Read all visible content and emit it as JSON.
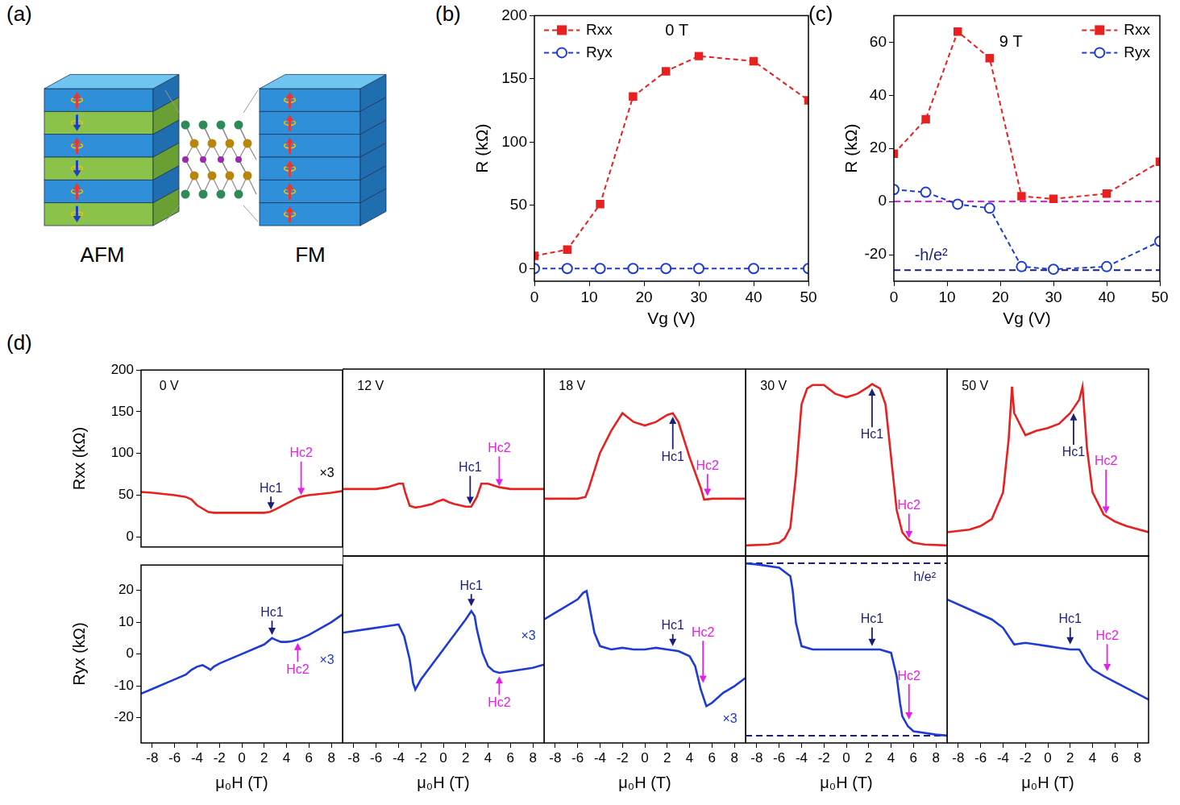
{
  "diagram": {
    "panel": "(a)",
    "labels": [
      "AFM",
      "FM"
    ]
  },
  "chart_data": [
    {
      "type": "line",
      "panel": "(b)",
      "xlabel": "Vg (V)",
      "ylabel": "R (kΩ)",
      "x": [
        0,
        6,
        12,
        18,
        24,
        30,
        40,
        50
      ],
      "series": [
        {
          "name": "Rxx",
          "color": "#e8201f",
          "marker": "square",
          "line_style": "dashed",
          "values": [
            10,
            15,
            51,
            136,
            156,
            168,
            164,
            133
          ]
        },
        {
          "name": "Ryx",
          "color": "#1f3bd6",
          "marker": "open_circle",
          "line_style": "dashed",
          "values": [
            0,
            0,
            0,
            0,
            0,
            0,
            0,
            0
          ]
        }
      ],
      "xlim": [
        0,
        50
      ],
      "xticks": [
        0,
        10,
        20,
        30,
        40,
        50
      ],
      "ylim": [
        -10,
        200
      ],
      "yticks": [
        0,
        50,
        100,
        150,
        200
      ],
      "grid": false,
      "legend": "upper left",
      "annotations": [
        {
          "text": "0 T",
          "x": 26,
          "y": 188,
          "color": "#000000"
        }
      ]
    },
    {
      "type": "line",
      "panel": "(c)",
      "xlabel": "Vg (V)",
      "ylabel": "R (kΩ)",
      "x": [
        0,
        6,
        12,
        18,
        24,
        30,
        40,
        50
      ],
      "series": [
        {
          "name": "Rxx",
          "color": "#e8201f",
          "marker": "square",
          "line_style": "dashed",
          "values": [
            18,
            31,
            64,
            54,
            2,
            1,
            3,
            15
          ]
        },
        {
          "name": "Ryx",
          "color": "#1f3bd6",
          "marker": "open_circle",
          "line_style": "dashed",
          "values": [
            4.5,
            3.5,
            -1,
            -2.5,
            -24.5,
            -25.5,
            -24.5,
            -15
          ]
        }
      ],
      "xlim": [
        0,
        50
      ],
      "xticks": [
        0,
        10,
        20,
        30,
        40,
        50
      ],
      "ylim": [
        -30,
        70
      ],
      "yticks": [
        -20,
        0,
        20,
        40,
        60
      ],
      "grid": false,
      "legend": "upper right",
      "hlines": [
        {
          "y": 0,
          "color": "#e61ee6",
          "line_style": "dashed"
        },
        {
          "y": -25.8,
          "color": "#1b1f7a",
          "line_style": "dashed"
        }
      ],
      "annotations": [
        {
          "text": "9 T",
          "x": 22,
          "y": 60,
          "color": "#000000"
        },
        {
          "text": "-h/e²",
          "x": 7,
          "y": -20.5,
          "color": "#1b1f7a"
        }
      ]
    },
    {
      "type": "line",
      "panel": "(d)",
      "ylabel": "Rxx (kΩ)",
      "tick_labels": "y",
      "x": [
        -9,
        -8,
        -6,
        -5,
        -4.5,
        -4,
        -3,
        -2.5,
        -2,
        0,
        2,
        2.5,
        3,
        4,
        5,
        5.5,
        6,
        8,
        9
      ],
      "series": [
        {
          "color": "#e8201f",
          "marker": "none",
          "line_style": "solid",
          "values": [
            54,
            53,
            50,
            48,
            45,
            38,
            30,
            29,
            29,
            29,
            29,
            30,
            33,
            40,
            47,
            49,
            50,
            53,
            55
          ]
        }
      ],
      "xlim": [
        -9,
        9
      ],
      "xticks": [
        -8,
        -6,
        -4,
        -2,
        0,
        2,
        4,
        6,
        8
      ],
      "ylim": [
        -12,
        200
      ],
      "yticks": [
        0,
        50,
        100,
        150,
        200
      ],
      "grid": false,
      "annotations": [
        {
          "text": "0 V",
          "x": -6.5,
          "y": 180,
          "color": "#000000"
        },
        {
          "text": "Hc1",
          "x": 2.6,
          "y": 58,
          "arrow_to": 33,
          "color": "#1b1f7a"
        },
        {
          "text": "Hc2",
          "x": 5.3,
          "y": 100,
          "arrow_to": 50,
          "color": "#e61ee6"
        },
        {
          "text": "×3",
          "x": 7.6,
          "y": 76,
          "color": "#000000"
        }
      ]
    },
    {
      "type": "line",
      "tick_labels": false,
      "x": [
        -9,
        -6,
        -5,
        -4.5,
        -4,
        -3.6,
        -3.4,
        -3,
        -2.5,
        -2,
        -1,
        -0.5,
        0,
        0.5,
        1,
        2,
        2.5,
        3,
        3.4,
        4,
        4.5,
        5,
        6,
        9
      ],
      "series": [
        {
          "color": "#e8201f",
          "marker": "none",
          "line_style": "solid",
          "values": [
            64,
            64,
            66,
            68,
            70,
            70,
            60,
            45,
            43,
            44,
            47,
            50,
            52,
            49,
            47,
            44,
            44,
            55,
            70,
            70,
            68,
            66,
            64,
            64
          ]
        }
      ],
      "xlim": [
        -9,
        9
      ],
      "xticks": [
        -8,
        -6,
        -4,
        -2,
        0,
        2,
        4,
        6,
        8
      ],
      "ylim": [
        -12,
        200
      ],
      "yticks": [
        0,
        50,
        100,
        150,
        200
      ],
      "grid": false,
      "annotations": [
        {
          "text": "12 V",
          "x": -6.5,
          "y": 180,
          "color": "#000000"
        },
        {
          "text": "Hc1",
          "x": 2.4,
          "y": 88,
          "arrow_to": 47,
          "color": "#1b1f7a"
        },
        {
          "text": "Hc2",
          "x": 5,
          "y": 110,
          "arrow_to": 67,
          "color": "#e61ee6"
        }
      ]
    },
    {
      "type": "line",
      "tick_labels": false,
      "x": [
        -9,
        -6,
        -5.3,
        -5,
        -4.5,
        -4,
        -3,
        -2,
        -1,
        0,
        1,
        2,
        2.5,
        3,
        4,
        5,
        5.3,
        6,
        9
      ],
      "series": [
        {
          "color": "#e8201f",
          "marker": "none",
          "line_style": "solid",
          "values": [
            53,
            53,
            55,
            65,
            85,
            105,
            130,
            150,
            140,
            136,
            140,
            148,
            150,
            140,
            100,
            65,
            52,
            53,
            53
          ]
        }
      ],
      "xlim": [
        -9,
        9
      ],
      "xticks": [
        -8,
        -6,
        -4,
        -2,
        0,
        2,
        4,
        6,
        8
      ],
      "ylim": [
        -12,
        200
      ],
      "yticks": [
        0,
        50,
        100,
        150,
        200
      ],
      "grid": false,
      "annotations": [
        {
          "text": "18 V",
          "x": -6.5,
          "y": 180,
          "color": "#000000"
        },
        {
          "text": "Hc1",
          "x": 2.5,
          "y": 100,
          "arrow_to": 146,
          "color": "#1b1f7a"
        },
        {
          "text": "Hc2",
          "x": 5.6,
          "y": 90,
          "arrow_to": 56,
          "color": "#e61ee6"
        }
      ]
    },
    {
      "type": "line",
      "tick_labels": false,
      "x": [
        -9,
        -7,
        -6,
        -5.5,
        -5,
        -4.5,
        -4,
        -3.5,
        -3,
        -2,
        -1,
        0,
        1,
        2,
        2.3,
        3,
        3.5,
        4,
        4.5,
        5,
        5.5,
        6,
        7,
        9
      ],
      "series": [
        {
          "color": "#e8201f",
          "marker": "none",
          "line_style": "solid",
          "values": [
            0,
            1,
            3,
            8,
            20,
            80,
            160,
            178,
            182,
            182,
            172,
            168,
            172,
            180,
            183,
            178,
            160,
            100,
            40,
            15,
            7,
            3,
            1,
            0
          ]
        }
      ],
      "xlim": [
        -9,
        9
      ],
      "xticks": [
        -8,
        -6,
        -4,
        -2,
        0,
        2,
        4,
        6,
        8
      ],
      "ylim": [
        -12,
        200
      ],
      "yticks": [
        0,
        50,
        100,
        150,
        200
      ],
      "grid": false,
      "annotations": [
        {
          "text": "30 V",
          "x": -6.5,
          "y": 180,
          "color": "#000000"
        },
        {
          "text": "Hc1",
          "x": 2.3,
          "y": 125,
          "arrow_to": 178,
          "color": "#1b1f7a"
        },
        {
          "text": "Hc2",
          "x": 5.6,
          "y": 45,
          "arrow_to": 8,
          "color": "#e61ee6"
        }
      ]
    },
    {
      "type": "line",
      "tick_labels": false,
      "x": [
        -9,
        -7,
        -6,
        -5,
        -4,
        -3.5,
        -3.2,
        -3,
        -2,
        -1,
        0,
        1,
        2,
        2.8,
        3.1,
        3.5,
        4,
        5,
        6,
        7,
        9
      ],
      "series": [
        {
          "color": "#e8201f",
          "marker": "none",
          "line_style": "solid",
          "values": [
            15,
            18,
            22,
            30,
            60,
            120,
            180,
            150,
            125,
            130,
            133,
            138,
            150,
            165,
            180,
            110,
            60,
            35,
            27,
            22,
            15
          ]
        }
      ],
      "xlim": [
        -9,
        9
      ],
      "xticks": [
        -8,
        -6,
        -4,
        -2,
        0,
        2,
        4,
        6,
        8
      ],
      "ylim": [
        -12,
        200
      ],
      "yticks": [
        0,
        50,
        100,
        150,
        200
      ],
      "grid": false,
      "annotations": [
        {
          "text": "50 V",
          "x": -6.5,
          "y": 180,
          "color": "#000000"
        },
        {
          "text": "Hc1",
          "x": 2.3,
          "y": 105,
          "arrow_to": 150,
          "color": "#1b1f7a"
        },
        {
          "text": "Hc2",
          "x": 5.2,
          "y": 95,
          "arrow_to": 36,
          "color": "#e61ee6"
        }
      ]
    },
    {
      "type": "line",
      "xlabel": "μ₀H (T)",
      "ylabel": "Ryx (kΩ)",
      "x": [
        -9,
        -8,
        -6,
        -5,
        -4.5,
        -4,
        -3.5,
        -3,
        -2.8,
        -2.5,
        -2,
        0,
        2,
        2.7,
        3,
        3.5,
        4,
        4.5,
        5,
        6,
        8,
        9
      ],
      "series": [
        {
          "color": "#1f3bd6",
          "marker": "none",
          "line_style": "solid",
          "values": [
            -12.5,
            -11,
            -8,
            -6.5,
            -5,
            -4,
            -3.5,
            -4.5,
            -5,
            -4,
            -3,
            0,
            3,
            5,
            4.5,
            3.8,
            3.8,
            4,
            4.5,
            6,
            10,
            12.5
          ]
        }
      ],
      "xlim": [
        -9,
        9
      ],
      "xticks": [
        -8,
        -6,
        -4,
        -2,
        0,
        2,
        4,
        6,
        8
      ],
      "ylim": [
        -28,
        28
      ],
      "yticks": [
        -20,
        -10,
        0,
        10,
        20
      ],
      "grid": false,
      "annotations": [
        {
          "text": "Hc1",
          "x": 2.7,
          "y": 13,
          "arrow_to": 6,
          "color": "#1b1f7a"
        },
        {
          "text": "Hc2",
          "x": 5,
          "y": -5,
          "arrow_to": 3.5,
          "color": "#e61ee6"
        },
        {
          "text": "×3",
          "x": 7.6,
          "y": -2,
          "color": "#1f3bd6"
        }
      ]
    },
    {
      "type": "line",
      "xlabel": "μ₀H (T)",
      "tick_labels": "x",
      "x": [
        -9,
        -7,
        -5,
        -4,
        -3.5,
        -3,
        -2.7,
        -2.5,
        -2,
        0,
        2,
        2.5,
        2.8,
        3,
        3.5,
        4,
        4.5,
        5,
        6,
        8,
        9
      ],
      "series": [
        {
          "color": "#1f3bd6",
          "marker": "none",
          "line_style": "solid",
          "values": [
            5,
            6,
            7,
            7.5,
            4,
            -3,
            -10,
            -12,
            -9,
            0,
            9,
            11.5,
            10,
            6,
            -1,
            -5,
            -6.5,
            -7,
            -6.5,
            -5.5,
            -4.5
          ]
        }
      ],
      "xlim": [
        -9,
        9
      ],
      "xticks": [
        -8,
        -6,
        -4,
        -2,
        0,
        2,
        4,
        6,
        8
      ],
      "ylim": [
        -28,
        28
      ],
      "yticks": [
        -20,
        -10,
        0,
        10,
        20
      ],
      "grid": false,
      "annotations": [
        {
          "text": "Hc1",
          "x": 2.5,
          "y": 19,
          "arrow_to": 13,
          "color": "#1b1f7a"
        },
        {
          "text": "Hc2",
          "x": 5,
          "y": -16,
          "arrow_to": -8,
          "color": "#e61ee6"
        },
        {
          "text": "×3",
          "x": 7.6,
          "y": 4,
          "color": "#1f3bd6"
        }
      ]
    },
    {
      "type": "line",
      "xlabel": "μ₀H (T)",
      "tick_labels": "x",
      "x": [
        -9,
        -8,
        -7,
        -6,
        -5.5,
        -5.2,
        -5,
        -4.5,
        -4,
        -3,
        -2,
        -1,
        0,
        1,
        2,
        3,
        4,
        4.5,
        5,
        5.5,
        6,
        7,
        8,
        9
      ],
      "series": [
        {
          "color": "#1f3bd6",
          "marker": "none",
          "line_style": "solid",
          "values": [
            9,
            11,
            13,
            15,
            17,
            17.5,
            14,
            5,
            1,
            0,
            0.5,
            0,
            0,
            0.5,
            0,
            -0.5,
            -2,
            -5,
            -12,
            -17,
            -16,
            -13,
            -11,
            -8.5
          ]
        }
      ],
      "xlim": [
        -9,
        9
      ],
      "xticks": [
        -8,
        -6,
        -4,
        -2,
        0,
        2,
        4,
        6,
        8
      ],
      "ylim": [
        -28,
        28
      ],
      "yticks": [
        -20,
        -10,
        0,
        10,
        20
      ],
      "grid": false,
      "annotations": [
        {
          "text": "Hc1",
          "x": 2.5,
          "y": 7,
          "arrow_to": 1,
          "color": "#1b1f7a"
        },
        {
          "text": "Hc2",
          "x": 5.2,
          "y": 5,
          "arrow_to": -10,
          "color": "#e61ee6"
        },
        {
          "text": "×3",
          "x": 7.6,
          "y": -21,
          "color": "#1f3bd6"
        }
      ]
    },
    {
      "type": "line",
      "xlabel": "μ₀H (T)",
      "tick_labels": "x",
      "x": [
        -9,
        -8,
        -6,
        -5,
        -4.8,
        -4.5,
        -4,
        -3,
        0,
        3,
        4,
        4.5,
        4.8,
        5,
        5.5,
        6,
        8,
        9
      ],
      "series": [
        {
          "color": "#1f3bd6",
          "marker": "none",
          "line_style": "solid",
          "values": [
            25.8,
            25.5,
            24.5,
            22,
            18,
            8,
            1,
            0,
            0,
            0,
            -1,
            -8,
            -16,
            -20,
            -23,
            -24.5,
            -25.5,
            -25.8
          ]
        }
      ],
      "xlim": [
        -9,
        9
      ],
      "xticks": [
        -8,
        -6,
        -4,
        -2,
        0,
        2,
        4,
        6,
        8
      ],
      "ylim": [
        -28,
        28
      ],
      "yticks": [
        -20,
        -10,
        0,
        10,
        20
      ],
      "grid": false,
      "hlines": [
        {
          "y": 25.8,
          "color": "#1b1f7a",
          "line_style": "dashed"
        },
        {
          "y": -25.8,
          "color": "#1b1f7a",
          "line_style": "dashed"
        }
      ],
      "annotations": [
        {
          "text": "h/e²",
          "x": 7,
          "y": 21.5,
          "color": "#1b1f7a"
        },
        {
          "text": "Hc1",
          "x": 2.3,
          "y": 9,
          "arrow_to": 1,
          "color": "#1b1f7a"
        },
        {
          "text": "Hc2",
          "x": 5.6,
          "y": -8,
          "arrow_to": -21,
          "color": "#e61ee6"
        }
      ]
    },
    {
      "type": "line",
      "xlabel": "μ₀H (T)",
      "tick_labels": "x",
      "x": [
        -9,
        -7,
        -5,
        -4,
        -3.5,
        -3,
        -2,
        -1,
        0,
        1,
        2,
        2.8,
        3,
        3.5,
        4,
        5,
        7,
        9
      ],
      "series": [
        {
          "color": "#1f3bd6",
          "marker": "none",
          "line_style": "solid",
          "values": [
            15,
            12,
            9,
            6.5,
            4,
            1.5,
            2,
            1.5,
            1,
            0.5,
            0,
            0,
            -1,
            -4,
            -6,
            -8,
            -11.5,
            -15
          ]
        }
      ],
      "xlim": [
        -9,
        9
      ],
      "xticks": [
        -8,
        -6,
        -4,
        -2,
        0,
        2,
        4,
        6,
        8
      ],
      "ylim": [
        -28,
        28
      ],
      "yticks": [
        -20,
        -10,
        0,
        10,
        20
      ],
      "grid": false,
      "annotations": [
        {
          "text": "Hc1",
          "x": 2.0,
          "y": 9,
          "arrow_to": 1.5,
          "color": "#1b1f7a"
        },
        {
          "text": "Hc2",
          "x": 5.3,
          "y": 4,
          "arrow_to": -6.5,
          "color": "#e61ee6"
        }
      ]
    }
  ]
}
